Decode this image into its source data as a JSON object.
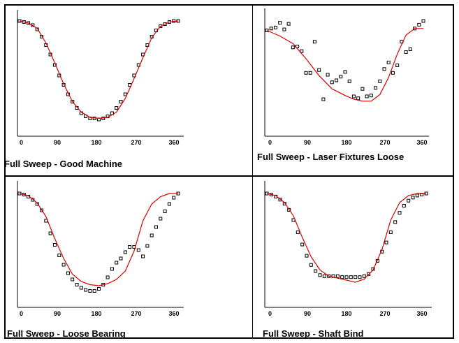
{
  "colors": {
    "fit_line": "#e00000",
    "marker": "#000000",
    "axis": "#000000"
  },
  "chart_data": [
    {
      "type": "scatter",
      "title": "Full Sweep - Good Machine",
      "xlim": [
        0,
        360
      ],
      "ylim": [
        0,
        1
      ],
      "x_ticks": [
        "0",
        "90",
        "180",
        "270",
        "360"
      ],
      "series": [
        {
          "kind": "markers",
          "x": [
            0,
            10,
            20,
            30,
            40,
            50,
            60,
            70,
            80,
            90,
            100,
            110,
            120,
            130,
            140,
            150,
            160,
            170,
            180,
            190,
            200,
            210,
            220,
            230,
            240,
            250,
            260,
            270,
            280,
            290,
            300,
            310,
            320,
            330,
            340,
            350,
            360
          ],
          "y": [
            1.0,
            0.99,
            0.98,
            0.96,
            0.92,
            0.85,
            0.77,
            0.68,
            0.58,
            0.48,
            0.39,
            0.3,
            0.23,
            0.17,
            0.12,
            0.09,
            0.07,
            0.07,
            0.06,
            0.07,
            0.09,
            0.12,
            0.17,
            0.23,
            0.3,
            0.39,
            0.48,
            0.58,
            0.68,
            0.77,
            0.85,
            0.91,
            0.95,
            0.97,
            0.99,
            1.0,
            1.0
          ]
        },
        {
          "kind": "line",
          "x": [
            0,
            20,
            40,
            60,
            80,
            100,
            120,
            140,
            160,
            180,
            200,
            220,
            240,
            260,
            280,
            300,
            320,
            340,
            360
          ],
          "y": [
            1.0,
            0.98,
            0.93,
            0.79,
            0.6,
            0.4,
            0.23,
            0.13,
            0.08,
            0.07,
            0.08,
            0.13,
            0.26,
            0.45,
            0.65,
            0.84,
            0.95,
            0.99,
            1.0
          ]
        }
      ]
    },
    {
      "type": "scatter",
      "title": "Full Sweep - Laser Fixtures Loose",
      "xlim": [
        0,
        360
      ],
      "ylim": [
        0,
        1
      ],
      "x_ticks": [
        "0",
        "90",
        "180",
        "270",
        "360"
      ],
      "series": [
        {
          "kind": "markers",
          "x": [
            0,
            10,
            20,
            30,
            40,
            50,
            60,
            70,
            80,
            90,
            100,
            110,
            120,
            130,
            140,
            150,
            160,
            170,
            180,
            190,
            200,
            210,
            220,
            230,
            240,
            250,
            260,
            270,
            280,
            290,
            300,
            310,
            320,
            330,
            340,
            350,
            360
          ],
          "y": [
            0.9,
            0.92,
            0.93,
            0.98,
            0.91,
            0.97,
            0.72,
            0.73,
            0.68,
            0.45,
            0.45,
            0.78,
            0.48,
            0.17,
            0.43,
            0.35,
            0.37,
            0.41,
            0.46,
            0.36,
            0.2,
            0.18,
            0.28,
            0.2,
            0.21,
            0.29,
            0.36,
            0.49,
            0.56,
            0.45,
            0.53,
            0.78,
            0.67,
            0.7,
            0.92,
            0.96,
            1.0
          ]
        },
        {
          "kind": "line",
          "x": [
            0,
            30,
            60,
            90,
            120,
            150,
            180,
            200,
            220,
            240,
            260,
            280,
            300,
            320,
            340,
            360
          ],
          "y": [
            0.9,
            0.84,
            0.76,
            0.6,
            0.42,
            0.28,
            0.21,
            0.17,
            0.15,
            0.15,
            0.22,
            0.4,
            0.65,
            0.85,
            0.92,
            0.92
          ]
        }
      ]
    },
    {
      "type": "scatter",
      "title": "Full Sweep - Loose Bearing",
      "xlim": [
        0,
        360
      ],
      "ylim": [
        0,
        1
      ],
      "x_ticks": [
        "0",
        "90",
        "180",
        "270",
        "360"
      ],
      "series": [
        {
          "kind": "markers",
          "x": [
            0,
            10,
            20,
            30,
            40,
            50,
            60,
            70,
            80,
            90,
            100,
            110,
            120,
            130,
            140,
            150,
            160,
            170,
            180,
            190,
            200,
            210,
            220,
            230,
            240,
            250,
            260,
            270,
            280,
            290,
            300,
            310,
            320,
            330,
            340,
            350,
            360
          ],
          "y": [
            1.0,
            0.99,
            0.97,
            0.94,
            0.9,
            0.84,
            0.74,
            0.62,
            0.51,
            0.41,
            0.32,
            0.24,
            0.18,
            0.13,
            0.1,
            0.08,
            0.07,
            0.07,
            0.09,
            0.13,
            0.2,
            0.28,
            0.34,
            0.38,
            0.44,
            0.49,
            0.49,
            0.46,
            0.4,
            0.5,
            0.6,
            0.68,
            0.76,
            0.83,
            0.9,
            0.96,
            1.0
          ]
        },
        {
          "kind": "line",
          "x": [
            0,
            20,
            40,
            60,
            80,
            100,
            120,
            140,
            160,
            180,
            200,
            220,
            240,
            260,
            280,
            300,
            320,
            340,
            360
          ],
          "y": [
            1.0,
            0.98,
            0.91,
            0.78,
            0.57,
            0.38,
            0.23,
            0.16,
            0.13,
            0.12,
            0.14,
            0.18,
            0.26,
            0.45,
            0.74,
            0.9,
            0.97,
            1.0,
            1.0
          ]
        }
      ]
    },
    {
      "type": "scatter",
      "title": "Full Sweep - Shaft Bind",
      "xlim": [
        0,
        360
      ],
      "ylim": [
        0,
        1
      ],
      "x_ticks": [
        "0",
        "90",
        "180",
        "270",
        "360"
      ],
      "series": [
        {
          "kind": "markers",
          "x": [
            0,
            10,
            20,
            30,
            40,
            50,
            60,
            70,
            80,
            90,
            100,
            110,
            120,
            130,
            140,
            150,
            160,
            170,
            180,
            190,
            200,
            210,
            220,
            230,
            240,
            250,
            260,
            270,
            280,
            290,
            300,
            310,
            320,
            330,
            340,
            350,
            360
          ],
          "y": [
            1.0,
            0.99,
            0.97,
            0.94,
            0.9,
            0.84,
            0.74,
            0.62,
            0.5,
            0.39,
            0.3,
            0.24,
            0.2,
            0.19,
            0.19,
            0.19,
            0.19,
            0.18,
            0.18,
            0.18,
            0.18,
            0.18,
            0.19,
            0.21,
            0.26,
            0.34,
            0.43,
            0.52,
            0.62,
            0.72,
            0.81,
            0.88,
            0.93,
            0.96,
            0.98,
            0.99,
            1.0
          ]
        },
        {
          "kind": "line",
          "x": [
            0,
            20,
            40,
            60,
            80,
            100,
            120,
            140,
            160,
            180,
            200,
            220,
            240,
            260,
            280,
            300,
            320,
            340,
            360
          ],
          "y": [
            1.0,
            0.98,
            0.91,
            0.78,
            0.57,
            0.38,
            0.25,
            0.19,
            0.17,
            0.15,
            0.13,
            0.16,
            0.25,
            0.45,
            0.74,
            0.91,
            0.98,
            1.0,
            1.0
          ]
        }
      ]
    }
  ]
}
